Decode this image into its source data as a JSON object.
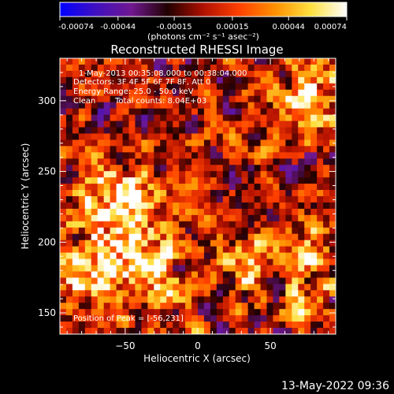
{
  "chart_data": {
    "type": "heatmap",
    "title": "Reconstructed RHESSI Image",
    "xlabel": "Heliocentric X (arcsec)",
    "ylabel": "Heliocentric Y (arcsec)",
    "xlim": [
      -95,
      95
    ],
    "ylim": [
      135,
      330
    ],
    "x_ticks": [
      -50,
      0,
      50
    ],
    "y_ticks": [
      150,
      200,
      250,
      300
    ],
    "colorbar": {
      "range": [
        -0.00074,
        0.00074
      ],
      "ticks": [
        "-0.00074",
        "-0.00044",
        "-0.00015",
        "0.00015",
        "0.00044",
        "0.00074"
      ],
      "label": "(photons cm⁻² s⁻¹ asec⁻²)",
      "colormap": [
        "#0000ff",
        "#4010c0",
        "#701890",
        "#200000",
        "#b01000",
        "#ff4000",
        "#ff9000",
        "#ffe040",
        "#ffffff"
      ]
    },
    "annotations": {
      "time": "1-May-2013 00:35:08.000 to 00:38:04.000",
      "detectors": "Detectors: 3F 4F 5F 6F 7F 8F, Att 0",
      "energy": "Energy Range: 25.0 - 50.0 keV",
      "clean": "Clean",
      "counts": "Total counts: 8.04E+03",
      "peak": "Position of Peak = [-56,231]"
    },
    "peak": [
      -56,
      231
    ],
    "bright_regions": [
      {
        "x": -56,
        "y": 231,
        "sigma": 18,
        "amplitude": 0.00074
      },
      {
        "x": -60,
        "y": 195,
        "sigma": 20,
        "amplitude": 0.0006
      },
      {
        "x": -20,
        "y": 180,
        "sigma": 16,
        "amplitude": 0.0005
      },
      {
        "x": -80,
        "y": 170,
        "sigma": 14,
        "amplitude": 0.00045
      },
      {
        "x": 30,
        "y": 185,
        "sigma": 12,
        "amplitude": 0.0004
      },
      {
        "x": 75,
        "y": 200,
        "sigma": 14,
        "amplitude": 0.00045
      },
      {
        "x": 80,
        "y": 300,
        "sigma": 18,
        "amplitude": 0.0005
      },
      {
        "x": 75,
        "y": 160,
        "sigma": 14,
        "amplitude": 0.0004
      }
    ]
  },
  "footer": {
    "timestamp": "13-May-2022 09:36"
  }
}
